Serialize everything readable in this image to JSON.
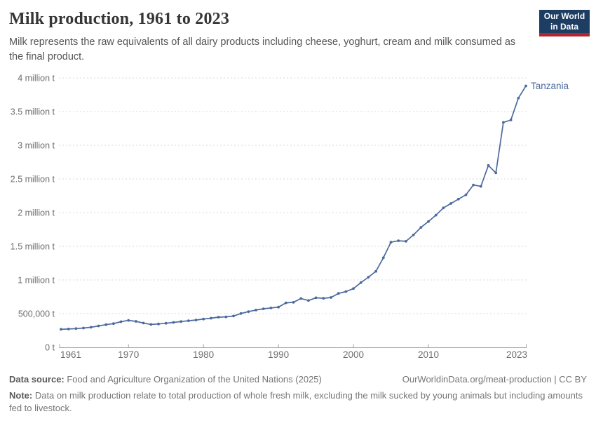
{
  "header": {
    "title": "Milk production, 1961 to 2023",
    "subtitle": "Milk represents the raw equivalents of all dairy products including cheese, yoghurt, cream and milk consumed as the final product.",
    "logo": {
      "line1": "Our World",
      "line2": "in Data",
      "bg_color": "#1d3d63",
      "accent_color": "#b5232f"
    }
  },
  "chart_data": {
    "type": "line",
    "title": "Milk production, 1961 to 2023",
    "entity_label": "Tanzania",
    "unit": "t",
    "grid": true,
    "line_color": "#4C6A9C",
    "grid_color": "#dadada",
    "axis_color": "#a3a3a3",
    "tick_label_color": "#6e6e6e",
    "xlim": [
      1961,
      2023
    ],
    "ylim": [
      0,
      4000000
    ],
    "y_ticks": [
      {
        "value": 0,
        "label": "0 t"
      },
      {
        "value": 500000,
        "label": "500,000 t"
      },
      {
        "value": 1000000,
        "label": "1 million t"
      },
      {
        "value": 1500000,
        "label": "1.5 million t"
      },
      {
        "value": 2000000,
        "label": "2 million t"
      },
      {
        "value": 2500000,
        "label": "2.5 million t"
      },
      {
        "value": 3000000,
        "label": "3 million t"
      },
      {
        "value": 3500000,
        "label": "3.5 million t"
      },
      {
        "value": 4000000,
        "label": "4 million t"
      }
    ],
    "x_ticks": [
      {
        "year": 1961,
        "label": "1961"
      },
      {
        "year": 1970,
        "label": "1970"
      },
      {
        "year": 1980,
        "label": "1980"
      },
      {
        "year": 1990,
        "label": "1990"
      },
      {
        "year": 2000,
        "label": "2000"
      },
      {
        "year": 2010,
        "label": "2010"
      },
      {
        "year": 2023,
        "label": "2023"
      }
    ],
    "series": [
      {
        "name": "Tanzania",
        "color": "#4C6A9C",
        "years": [
          1961,
          1962,
          1963,
          1964,
          1965,
          1966,
          1967,
          1968,
          1969,
          1970,
          1971,
          1972,
          1973,
          1974,
          1975,
          1976,
          1977,
          1978,
          1979,
          1980,
          1981,
          1982,
          1983,
          1984,
          1985,
          1986,
          1987,
          1988,
          1989,
          1990,
          1991,
          1992,
          1993,
          1994,
          1995,
          1996,
          1997,
          1998,
          1999,
          2000,
          2001,
          2002,
          2003,
          2004,
          2005,
          2006,
          2007,
          2008,
          2009,
          2010,
          2011,
          2012,
          2013,
          2014,
          2015,
          2016,
          2017,
          2018,
          2019,
          2020,
          2021,
          2022,
          2023
        ],
        "values": [
          268000,
          272000,
          278000,
          286000,
          298000,
          318000,
          336000,
          352000,
          380000,
          400000,
          385000,
          360000,
          340000,
          347000,
          357000,
          370000,
          382000,
          395000,
          405000,
          420000,
          432000,
          448000,
          452000,
          465000,
          502000,
          530000,
          553000,
          572000,
          584000,
          597000,
          660000,
          668000,
          725000,
          695000,
          735000,
          728000,
          740000,
          800000,
          828000,
          872000,
          960000,
          1042000,
          1128000,
          1330000,
          1560000,
          1582000,
          1574000,
          1668000,
          1780000,
          1868000,
          1962000,
          2070000,
          2135000,
          2200000,
          2265000,
          2410000,
          2390000,
          2700000,
          2590000,
          3340000,
          3375000,
          3700000,
          3880000
        ]
      }
    ]
  },
  "footer": {
    "source_label": "Data source:",
    "source_text": " Food and Agriculture Organization of the United Nations (2025)",
    "attribution": "OurWorldinData.org/meat-production | CC BY",
    "note_label": "Note:",
    "note_text": " Data on milk production relate to total production of whole fresh milk, excluding the milk sucked by young animals but including amounts fed to livestock."
  }
}
